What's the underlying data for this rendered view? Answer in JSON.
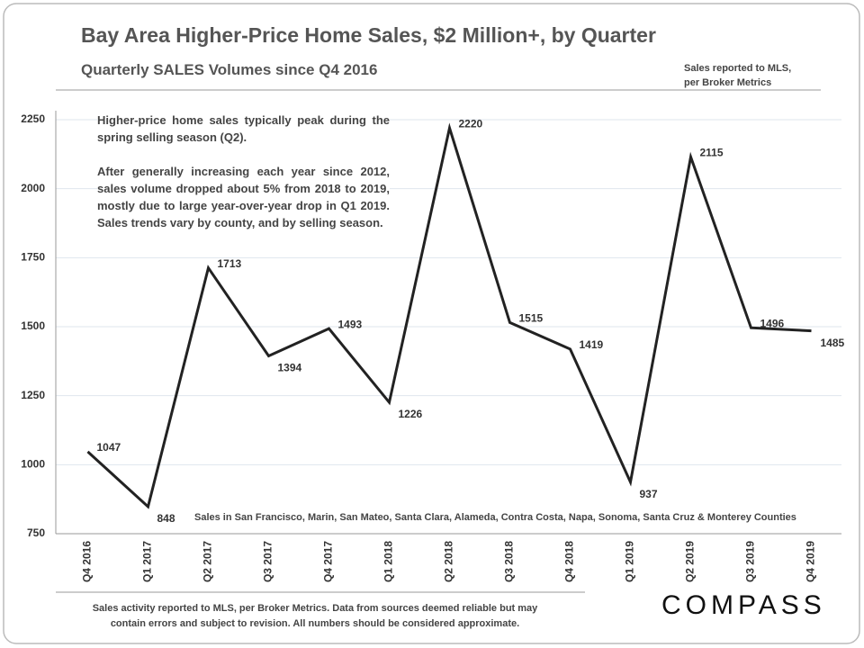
{
  "chart_data": {
    "type": "line",
    "title": "Bay Area Higher-Price Home Sales, $2 Million+, by Quarter",
    "subtitle": "Quarterly  SALES Volumes since Q4 2016",
    "source_lines": [
      "Sales reported to MLS,",
      "per Broker Metrics"
    ],
    "annotations": [
      "Higher-price home sales typically peak during the spring selling season (Q2).",
      "After generally increasing each year since 2012, sales volume dropped about 5% from 2018 to 2019, mostly due to large year-over-year drop in Q1 2019. Sales trends vary by county, and by selling season."
    ],
    "counties_note": "Sales in San Francisco, Marin, San Mateo, Santa Clara, Alameda, Contra Costa, Napa, Sonoma, Santa Cruz & Monterey Counties",
    "footer_lines": [
      "Sales activity reported to MLS, per Broker Metrics. Data from sources deemed reliable but may",
      "contain errors and subject to revision. All numbers should be considered approximate."
    ],
    "logo": "COMPASS",
    "categories": [
      "Q4 2016",
      "Q1 2017",
      "Q2 2017",
      "Q3 2017",
      "Q4 2017",
      "Q1 2018",
      "Q2 2018",
      "Q3 2018",
      "Q4 2018",
      "Q1 2019",
      "Q2 2019",
      "Q3 2019",
      "Q4 2019"
    ],
    "values": [
      1047,
      848,
      1713,
      1394,
      1493,
      1226,
      2220,
      1515,
      1419,
      937,
      2115,
      1496,
      1485
    ],
    "color": "#222222",
    "ylim": [
      750,
      2250
    ],
    "yticks": [
      750,
      1000,
      1250,
      1500,
      1750,
      2000,
      2250
    ],
    "grid": true
  }
}
